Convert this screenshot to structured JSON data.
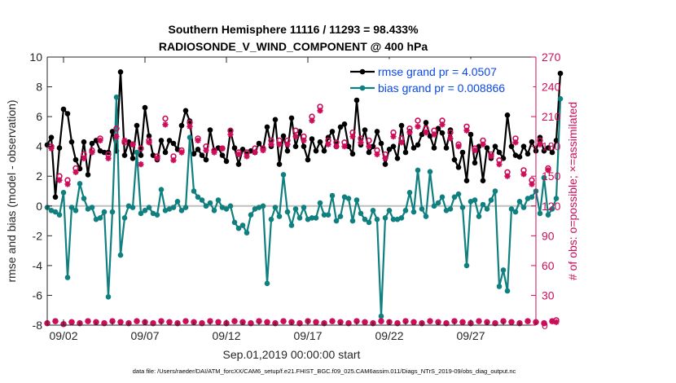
{
  "chart_data": {
    "type": "line",
    "title": "Southern Hemisphere 11116 / 11293 = 98.433%",
    "subtitle": "RADIOSONDE_V_WIND_COMPONENT @ 400 hPa",
    "xlabel": "Sep.01,2019 00:00:00 start",
    "ylabel": "rmse and bias (model - observation)",
    "y2label": "# of obs: o=possible; ×=assimilated",
    "footnote": "data file: /Users/raeder/DAI/ATM_forcXX/CAM6_setup/f.e21.FHIST_BGC.f09_025.CAM6assim.011/Diags_NTrS_2019-09/obs_diag_output.nc",
    "xlim": [
      1,
      31
    ],
    "ylim": [
      -8,
      10
    ],
    "y2lim": [
      0,
      270
    ],
    "xticks": [
      2,
      7,
      12,
      17,
      22,
      27
    ],
    "xticklabels": [
      "09/02",
      "09/07",
      "09/12",
      "09/17",
      "09/22",
      "09/27"
    ],
    "yticks": [
      -8,
      -6,
      -4,
      -2,
      0,
      2,
      4,
      6,
      8,
      10
    ],
    "y2ticks": [
      0,
      30,
      60,
      90,
      120,
      150,
      180,
      210,
      240,
      270
    ],
    "legend_position": "top-right",
    "legend": [
      "rmse grand pr = 4.0507",
      "bias grand pr = 0.008866"
    ],
    "colors": {
      "rmse": "#000000",
      "bias": "#0f7f7f",
      "obs": "#cc0e5a",
      "zero": "#bfbfbf",
      "legend_text": "#0a47e6"
    },
    "x_start": 1.0,
    "x_step": 0.25,
    "series": [
      {
        "name": "rmse",
        "axis": "left",
        "values": [
          4.1,
          4.6,
          0.6,
          3.9,
          6.5,
          6.2,
          4.3,
          3.1,
          2.5,
          4.3,
          2.1,
          4.2,
          4.4,
          3.7,
          3.6,
          3.6,
          5.0,
          3.7,
          9.0,
          3.4,
          4.3,
          3.2,
          5.4,
          3.4,
          6.6,
          4.7,
          3.4,
          3.1,
          4.4,
          3.6,
          4.4,
          4.2,
          3.8,
          5.4,
          6.4,
          5.7,
          3.5,
          3.8,
          3.4,
          3.1,
          5.1,
          3.7,
          3.9,
          3.4,
          3.0,
          5.0,
          3.9,
          2.8,
          3.8,
          3.5,
          3.7,
          3.6,
          4.2,
          3.8,
          5.3,
          4.0,
          5.8,
          2.8,
          4.7,
          3.7,
          5.9,
          4.0,
          5.0,
          4.0,
          3.1,
          4.5,
          3.7,
          4.3,
          3.7,
          4.6,
          5.0,
          4.0,
          5.3,
          5.5,
          4.0,
          3.5,
          7.1,
          4.1,
          5.1,
          3.6,
          4.0,
          5.0,
          4.2,
          2.8,
          3.8,
          4.0,
          3.2,
          5.4,
          3.6,
          5.0,
          3.9,
          4.1,
          4.8,
          5.6,
          4.7,
          3.9,
          5.2,
          4.9,
          3.9,
          5.1,
          3.1,
          2.6,
          3.6,
          1.7,
          4.8,
          2.9,
          4.0,
          1.7,
          3.9,
          3.2,
          4.0,
          3.6,
          3.2,
          6.1,
          4.0,
          3.4,
          3.3,
          4.0,
          3.5,
          4.3,
          3.7,
          4.6,
          3.7,
          3.9,
          3.6,
          4.4,
          8.9
        ]
      },
      {
        "name": "bias",
        "axis": "left",
        "values": [
          -0.1,
          -0.3,
          -0.4,
          -0.6,
          0.9,
          -4.8,
          -0.1,
          -0.3,
          1.5,
          0.5,
          -0.2,
          -0.1,
          -0.9,
          -0.8,
          -0.4,
          -6.1,
          -0.4,
          7.3,
          -3.3,
          -0.8,
          0.0,
          -0.1,
          3.6,
          -0.5,
          -0.3,
          -0.1,
          -0.5,
          -0.6,
          1.1,
          -0.3,
          -0.2,
          -0.1,
          0.3,
          -0.3,
          -0.1,
          4.6,
          1.0,
          0.6,
          0.4,
          0.0,
          0.2,
          -0.3,
          0.4,
          -0.1,
          -0.2,
          0.0,
          -1.1,
          -1.5,
          -1.3,
          -1.8,
          -0.6,
          -0.2,
          -0.1,
          0.0,
          -5.2,
          -0.9,
          -0.1,
          -0.7,
          2.1,
          -0.4,
          -1.3,
          -0.2,
          -0.8,
          -0.1,
          -0.9,
          -0.8,
          -0.8,
          0.2,
          -0.6,
          -0.6,
          0.7,
          -1.0,
          -0.7,
          0.6,
          0.5,
          -1.0,
          0.4,
          -0.5,
          -0.9,
          -1.1,
          -0.3,
          -0.9,
          -7.4,
          -0.8,
          -0.3,
          -0.9,
          -0.9,
          -0.8,
          -0.3,
          0.9,
          -0.4,
          2.4,
          -0.2,
          -0.7,
          2.3,
          0.0,
          0.2,
          0.6,
          -0.3,
          -0.2,
          0.6,
          0.8,
          -0.1,
          -4.0,
          0.3,
          0.4,
          -0.7,
          0.1,
          -0.2,
          0.4,
          1.0,
          -5.4,
          -4.3,
          -5.7,
          -0.2,
          -0.4,
          0.3,
          -0.1,
          0.5,
          0.6,
          1.0,
          -0.5,
          1.9,
          -0.6,
          -0.2,
          0.5,
          7.2
        ]
      },
      {
        "name": "obs_possible",
        "axis": "right",
        "values": [
          2,
          180,
          4,
          150,
          1,
          146,
          3,
          158,
          2,
          172,
          4,
          176,
          3,
          188,
          2,
          172,
          4,
          198,
          3,
          184,
          2,
          182,
          4,
          178,
          3,
          186,
          2,
          170,
          4,
          208,
          3,
          170,
          2,
          176,
          4,
          204,
          3,
          188,
          2,
          180,
          4,
          176,
          3,
          178,
          2,
          196,
          4,
          174,
          3,
          174,
          2,
          178,
          4,
          178,
          3,
          186,
          2,
          186,
          4,
          186,
          3,
          196,
          2,
          190,
          4,
          210,
          3,
          220,
          2,
          186,
          4,
          184,
          3,
          184,
          2,
          194,
          4,
          188,
          3,
          186,
          2,
          176,
          4,
          172,
          3,
          194,
          2,
          188,
          4,
          198,
          3,
          206,
          2,
          198,
          4,
          196,
          3,
          206,
          2,
          194,
          4,
          182,
          3,
          200,
          2,
          178,
          4,
          186,
          3,
          172,
          2,
          166,
          4,
          154,
          3,
          188,
          2,
          156,
          4,
          146,
          3,
          186,
          2,
          158,
          4,
          5
        ],
        "marker": "circle"
      },
      {
        "name": "obs_assimilated",
        "axis": "right",
        "values": [
          2,
          178,
          4,
          146,
          1,
          142,
          3,
          154,
          2,
          168,
          4,
          174,
          3,
          186,
          2,
          168,
          4,
          190,
          3,
          186,
          2,
          182,
          4,
          162,
          3,
          184,
          2,
          168,
          4,
          202,
          3,
          166,
          2,
          174,
          4,
          200,
          3,
          186,
          2,
          176,
          4,
          174,
          3,
          178,
          2,
          192,
          4,
          172,
          3,
          170,
          2,
          174,
          4,
          176,
          3,
          182,
          2,
          182,
          4,
          182,
          3,
          190,
          2,
          186,
          4,
          206,
          3,
          216,
          2,
          182,
          4,
          180,
          3,
          180,
          2,
          190,
          4,
          184,
          3,
          180,
          2,
          172,
          4,
          168,
          3,
          190,
          2,
          184,
          4,
          194,
          3,
          200,
          2,
          194,
          4,
          192,
          3,
          202,
          2,
          188,
          4,
          180,
          3,
          196,
          2,
          176,
          4,
          182,
          3,
          170,
          2,
          162,
          4,
          150,
          3,
          184,
          2,
          152,
          4,
          142,
          3,
          182,
          2,
          156,
          4,
          3
        ],
        "marker": "asterisk"
      }
    ]
  }
}
